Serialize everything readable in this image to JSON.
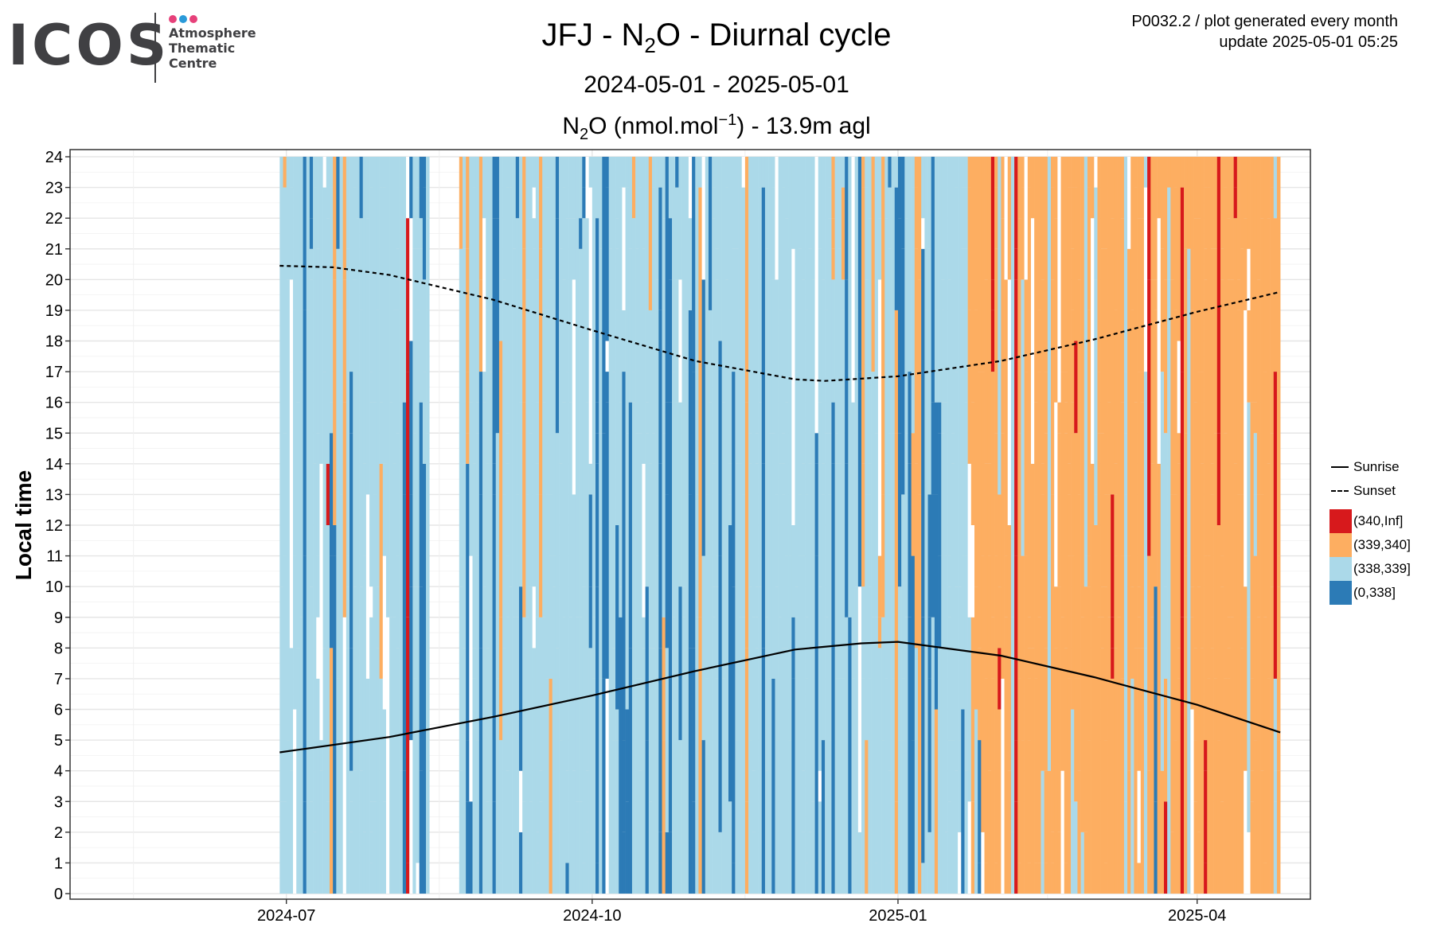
{
  "logo": {
    "word": "ICOS",
    "line1": "Atmosphere",
    "line2": "Thematic",
    "line3": "Centre",
    "dot_colors": [
      "#e6417a",
      "#2a9ad9",
      "#e6417a"
    ]
  },
  "header": {
    "title_prefix": "JFJ - N",
    "title_sub": "2",
    "title_suffix": "O - Diurnal cycle",
    "period": "2024-05-01 - 2025-05-01",
    "measure_prefix": "N",
    "measure_sub": "2",
    "measure_mid": "O (nmol.mol",
    "measure_sup": "−1",
    "measure_suffix": ") - 13.9m agl",
    "corner_line1": "P0032.2 / plot generated every month",
    "corner_line2": "update  2025-05-01 05:25"
  },
  "chart_data": {
    "type": "heatmap",
    "xlabel": "",
    "ylabel": "Local time",
    "x_range": [
      "2024-05-01",
      "2025-05-01"
    ],
    "ylim": [
      0,
      24
    ],
    "x_ticks": [
      {
        "date": "2024-07-01",
        "label": "2024-07"
      },
      {
        "date": "2024-10-01",
        "label": "2024-10"
      },
      {
        "date": "2025-01-01",
        "label": "2025-01"
      },
      {
        "date": "2025-04-01",
        "label": "2025-04"
      }
    ],
    "y_ticks": [
      "0",
      "1",
      "2",
      "3",
      "4",
      "5",
      "6",
      "7",
      "8",
      "9",
      "10",
      "11",
      "12",
      "13",
      "14",
      "15",
      "16",
      "17",
      "18",
      "19",
      "20",
      "21",
      "22",
      "23",
      "24"
    ],
    "grid": true,
    "legend_position": "right",
    "bins": [
      {
        "label": "(340,Inf]",
        "color": "#d7191c"
      },
      {
        "label": "(339,340]",
        "color": "#fdae61"
      },
      {
        "label": "(338,339]",
        "color": "#abd9e9"
      },
      {
        "label": "(0,338]",
        "color": "#2c7bb6"
      }
    ],
    "data_periods": [
      {
        "start": "2024-06-29",
        "end": "2024-08-13",
        "dominant_bin": "(338,339]"
      },
      {
        "start": "2024-08-22",
        "end": "2025-01-22",
        "dominant_bin": "(338,339]"
      },
      {
        "start": "2025-01-22",
        "end": "2025-04-26",
        "dominant_bin": "(339,340]"
      }
    ],
    "missing_periods": [
      {
        "start": "2024-05-01",
        "end": "2024-06-29"
      },
      {
        "start": "2024-08-13",
        "end": "2024-08-22"
      }
    ],
    "series": [
      {
        "name": "Sunrise",
        "style": "solid",
        "x": [
          "2024-06-29",
          "2024-08-01",
          "2024-09-01",
          "2024-10-01",
          "2024-11-01",
          "2024-12-01",
          "2024-12-21",
          "2025-01-01",
          "2025-02-01",
          "2025-03-01",
          "2025-04-01",
          "2025-04-26"
        ],
        "y": [
          4.6,
          5.1,
          5.75,
          6.45,
          7.25,
          7.95,
          8.15,
          8.2,
          7.75,
          7.05,
          6.15,
          5.25
        ]
      },
      {
        "name": "Sunset",
        "style": "dashed",
        "x": [
          "2024-06-29",
          "2024-07-15",
          "2024-08-01",
          "2024-09-01",
          "2024-10-01",
          "2024-11-01",
          "2024-12-01",
          "2024-12-10",
          "2025-01-01",
          "2025-02-01",
          "2025-03-01",
          "2025-04-01",
          "2025-04-26"
        ],
        "y": [
          20.45,
          20.4,
          20.15,
          19.35,
          18.35,
          17.35,
          16.75,
          16.7,
          16.85,
          17.35,
          18.05,
          18.95,
          19.6
        ]
      }
    ]
  }
}
